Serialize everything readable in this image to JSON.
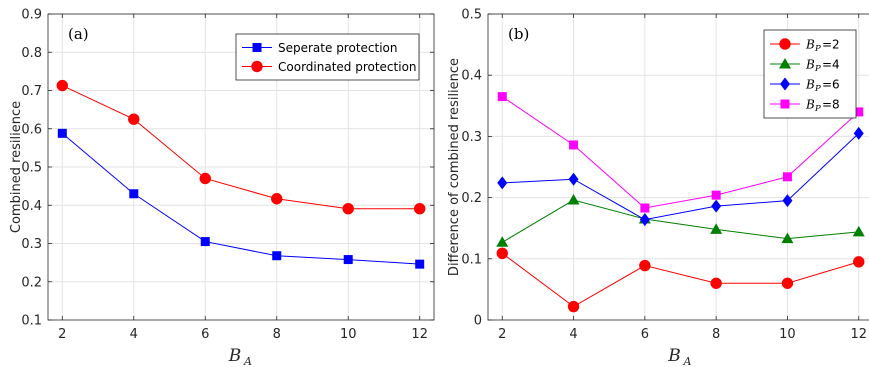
{
  "chart_data": [
    {
      "type": "line",
      "panel_label": "(a)",
      "xlabel": "B",
      "xlabel_sub": "A",
      "ylabel": "Combined resilience",
      "x": [
        2,
        4,
        6,
        8,
        10,
        12
      ],
      "xticks": [
        "2",
        "4",
        "6",
        "8",
        "10",
        "12"
      ],
      "xlim": [
        1.6,
        12.4
      ],
      "ylim": [
        0.1,
        0.9
      ],
      "yticks": [
        "0.1",
        "0.2",
        "0.3",
        "0.4",
        "0.5",
        "0.6",
        "0.7",
        "0.8",
        "0.9"
      ],
      "grid": true,
      "legend_position": "top-right",
      "series": [
        {
          "name": "Seperate protection",
          "color": "#0000FF",
          "marker": "square",
          "values": [
            0.588,
            0.43,
            0.305,
            0.268,
            0.258,
            0.246
          ]
        },
        {
          "name": "Coordinated protection",
          "color": "#FF0000",
          "marker": "circle",
          "values": [
            0.713,
            0.625,
            0.47,
            0.417,
            0.391,
            0.391
          ]
        }
      ]
    },
    {
      "type": "line",
      "panel_label": "(b)",
      "xlabel": "B",
      "xlabel_sub": "A",
      "ylabel": "Difference of combined resilience",
      "x": [
        2,
        4,
        6,
        8,
        10,
        12
      ],
      "xticks": [
        "2",
        "4",
        "6",
        "8",
        "10",
        "12"
      ],
      "xlim": [
        1.6,
        12.4
      ],
      "ylim": [
        0,
        0.5
      ],
      "yticks": [
        "0",
        "0.1",
        "0.2",
        "0.3",
        "0.4",
        "0.5"
      ],
      "grid": true,
      "legend_position": "top-right",
      "series": [
        {
          "name": "B_P=2",
          "label_base": "B",
          "label_sub": "P",
          "label_rest": "=2",
          "color": "#FF0000",
          "marker": "circle",
          "values": [
            0.109,
            0.022,
            0.089,
            0.06,
            0.06,
            0.095
          ]
        },
        {
          "name": "B_P=4",
          "label_base": "B",
          "label_sub": "P",
          "label_rest": "=4",
          "color": "#008000",
          "marker": "triangle",
          "values": [
            0.127,
            0.196,
            0.165,
            0.148,
            0.133,
            0.144
          ]
        },
        {
          "name": "B_P=6",
          "label_base": "B",
          "label_sub": "P",
          "label_rest": "=6",
          "color": "#0000FF",
          "marker": "diamond",
          "values": [
            0.224,
            0.23,
            0.164,
            0.186,
            0.195,
            0.305
          ]
        },
        {
          "name": "B_P=8",
          "label_base": "B",
          "label_sub": "P",
          "label_rest": "=8",
          "color": "#FF00FF",
          "marker": "square",
          "values": [
            0.365,
            0.286,
            0.183,
            0.204,
            0.234,
            0.34
          ]
        }
      ]
    }
  ]
}
